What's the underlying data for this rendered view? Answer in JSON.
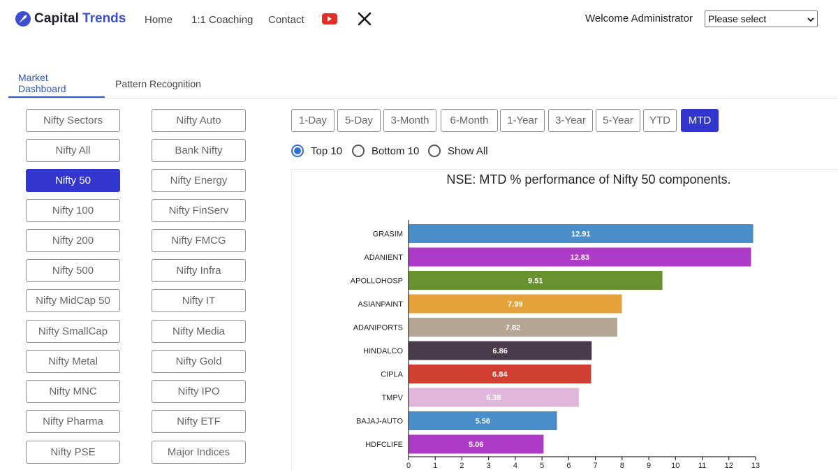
{
  "brand": {
    "name": "Capital",
    "accent": "Trends"
  },
  "nav": {
    "home": "Home",
    "coaching": "1:1 Coaching",
    "contact": "Contact"
  },
  "header": {
    "welcome": "Welcome Administrator",
    "select_value": "Please select"
  },
  "tabs": [
    {
      "label": "Market Dashboard",
      "active": true
    },
    {
      "label": "Pattern Recognition",
      "active": false
    }
  ],
  "index_buttons": [
    {
      "label": "Nifty Sectors"
    },
    {
      "label": "Nifty Auto"
    },
    {
      "label": "Nifty All"
    },
    {
      "label": "Bank Nifty"
    },
    {
      "label": "Nifty 50",
      "active": true
    },
    {
      "label": "Nifty Energy"
    },
    {
      "label": "Nifty 100"
    },
    {
      "label": "Nifty FinServ"
    },
    {
      "label": "Nifty 200"
    },
    {
      "label": "Nifty FMCG"
    },
    {
      "label": "Nifty 500"
    },
    {
      "label": "Nifty Infra"
    },
    {
      "label": "Nifty MidCap 50"
    },
    {
      "label": "Nifty IT"
    },
    {
      "label": "Nifty SmallCap"
    },
    {
      "label": "Nifty Media"
    },
    {
      "label": "Nifty Metal"
    },
    {
      "label": "Nifty Gold"
    },
    {
      "label": "Nifty MNC"
    },
    {
      "label": "Nifty IPO"
    },
    {
      "label": "Nifty Pharma"
    },
    {
      "label": "Nifty ETF"
    },
    {
      "label": "Nifty PSE"
    },
    {
      "label": "Major Indices"
    }
  ],
  "periods": [
    {
      "label": "1-Day"
    },
    {
      "label": "5-Day"
    },
    {
      "label": "3-Month"
    },
    {
      "label": "6-Month"
    },
    {
      "label": "1-Year"
    },
    {
      "label": "3-Year"
    },
    {
      "label": "5-Year"
    },
    {
      "label": "YTD"
    },
    {
      "label": "MTD",
      "active": true
    }
  ],
  "radios": [
    {
      "label": "Top 10",
      "checked": true
    },
    {
      "label": "Bottom 10",
      "checked": false
    },
    {
      "label": "Show All",
      "checked": false
    }
  ],
  "chart_data": {
    "type": "bar",
    "orientation": "horizontal",
    "title": "NSE: MTD % performance of Nifty 50 components.",
    "categories": [
      "GRASIM",
      "ADANIENT",
      "APOLLOHOSP",
      "ASIANPAINT",
      "ADANIPORTS",
      "HINDALCO",
      "CIPLA",
      "TMPV",
      "BAJAJ-AUTO",
      "HDFCLIFE"
    ],
    "values": [
      12.91,
      12.83,
      9.51,
      7.99,
      7.82,
      6.86,
      6.84,
      6.38,
      5.56,
      5.06
    ],
    "colors": [
      "#4a8ec9",
      "#ae3bc8",
      "#67922f",
      "#e6a23a",
      "#b5a693",
      "#4a3b4b",
      "#d13f32",
      "#e0b6db",
      "#4a8ec9",
      "#ae3bc8"
    ],
    "xlim": [
      0,
      13
    ],
    "xticks": [
      0,
      1,
      2,
      3,
      4,
      5,
      6,
      7,
      8,
      9,
      10,
      11,
      12,
      13
    ],
    "grid": false,
    "legend": "none"
  }
}
